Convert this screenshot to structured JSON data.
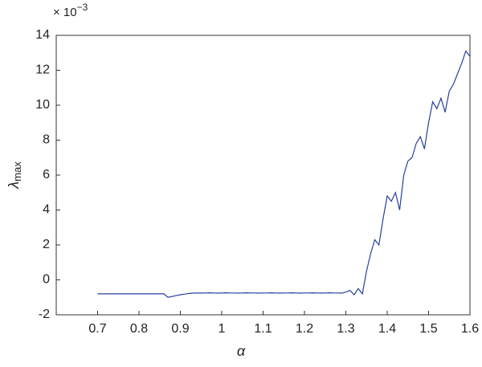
{
  "chart_data": {
    "type": "line",
    "x_label": "α",
    "y_label": {
      "symbol": "λ",
      "subscript": "max"
    },
    "y_scale": {
      "base": "× 10",
      "exponent": "−3"
    },
    "x": [
      0.7,
      0.71,
      0.72,
      0.73,
      0.74,
      0.75,
      0.76,
      0.77,
      0.78,
      0.79,
      0.8,
      0.81,
      0.82,
      0.83,
      0.84,
      0.85,
      0.86,
      0.87,
      0.88,
      0.89,
      0.9,
      0.91,
      0.92,
      0.93,
      0.94,
      0.95,
      0.96,
      0.97,
      0.98,
      0.99,
      1.0,
      1.01,
      1.02,
      1.03,
      1.04,
      1.05,
      1.06,
      1.07,
      1.08,
      1.09,
      1.1,
      1.11,
      1.12,
      1.13,
      1.14,
      1.15,
      1.16,
      1.17,
      1.18,
      1.19,
      1.2,
      1.21,
      1.22,
      1.23,
      1.24,
      1.25,
      1.26,
      1.27,
      1.28,
      1.29,
      1.3,
      1.31,
      1.32,
      1.33,
      1.34,
      1.35,
      1.36,
      1.37,
      1.38,
      1.39,
      1.4,
      1.41,
      1.42,
      1.43,
      1.44,
      1.45,
      1.46,
      1.47,
      1.48,
      1.49,
      1.5,
      1.51,
      1.52,
      1.53,
      1.54,
      1.55,
      1.56,
      1.57,
      1.58,
      1.59,
      1.6
    ],
    "series": [
      {
        "color": "#2a3f9d",
        "values": [
          -0.8,
          -0.8,
          -0.8,
          -0.8,
          -0.8,
          -0.8,
          -0.8,
          -0.8,
          -0.8,
          -0.8,
          -0.8,
          -0.8,
          -0.8,
          -0.8,
          -0.8,
          -0.8,
          -0.8,
          -1.0,
          -0.95,
          -0.9,
          -0.85,
          -0.82,
          -0.78,
          -0.76,
          -0.75,
          -0.76,
          -0.75,
          -0.74,
          -0.75,
          -0.76,
          -0.75,
          -0.74,
          -0.75,
          -0.75,
          -0.76,
          -0.75,
          -0.74,
          -0.75,
          -0.75,
          -0.76,
          -0.75,
          -0.75,
          -0.74,
          -0.75,
          -0.76,
          -0.75,
          -0.75,
          -0.74,
          -0.75,
          -0.76,
          -0.75,
          -0.75,
          -0.74,
          -0.75,
          -0.76,
          -0.75,
          -0.74,
          -0.75,
          -0.75,
          -0.76,
          -0.7,
          -0.6,
          -0.85,
          -0.5,
          -0.8,
          0.5,
          1.5,
          2.3,
          2.0,
          3.5,
          4.8,
          4.5,
          5.0,
          4.0,
          6.0,
          6.8,
          7.0,
          7.8,
          8.2,
          7.5,
          9.0,
          10.2,
          9.8,
          10.4,
          9.6,
          10.8,
          11.2,
          11.8,
          12.4,
          13.1,
          12.8
        ]
      }
    ],
    "xlim": [
      0.6,
      1.6
    ],
    "xticks": [
      0.7,
      0.8,
      0.9,
      1,
      1.1,
      1.2,
      1.3,
      1.4,
      1.5,
      1.6
    ],
    "ylim": [
      -2,
      14
    ],
    "yticks": [
      -2,
      0,
      2,
      4,
      6,
      8,
      10,
      12,
      14
    ],
    "grid": false
  }
}
